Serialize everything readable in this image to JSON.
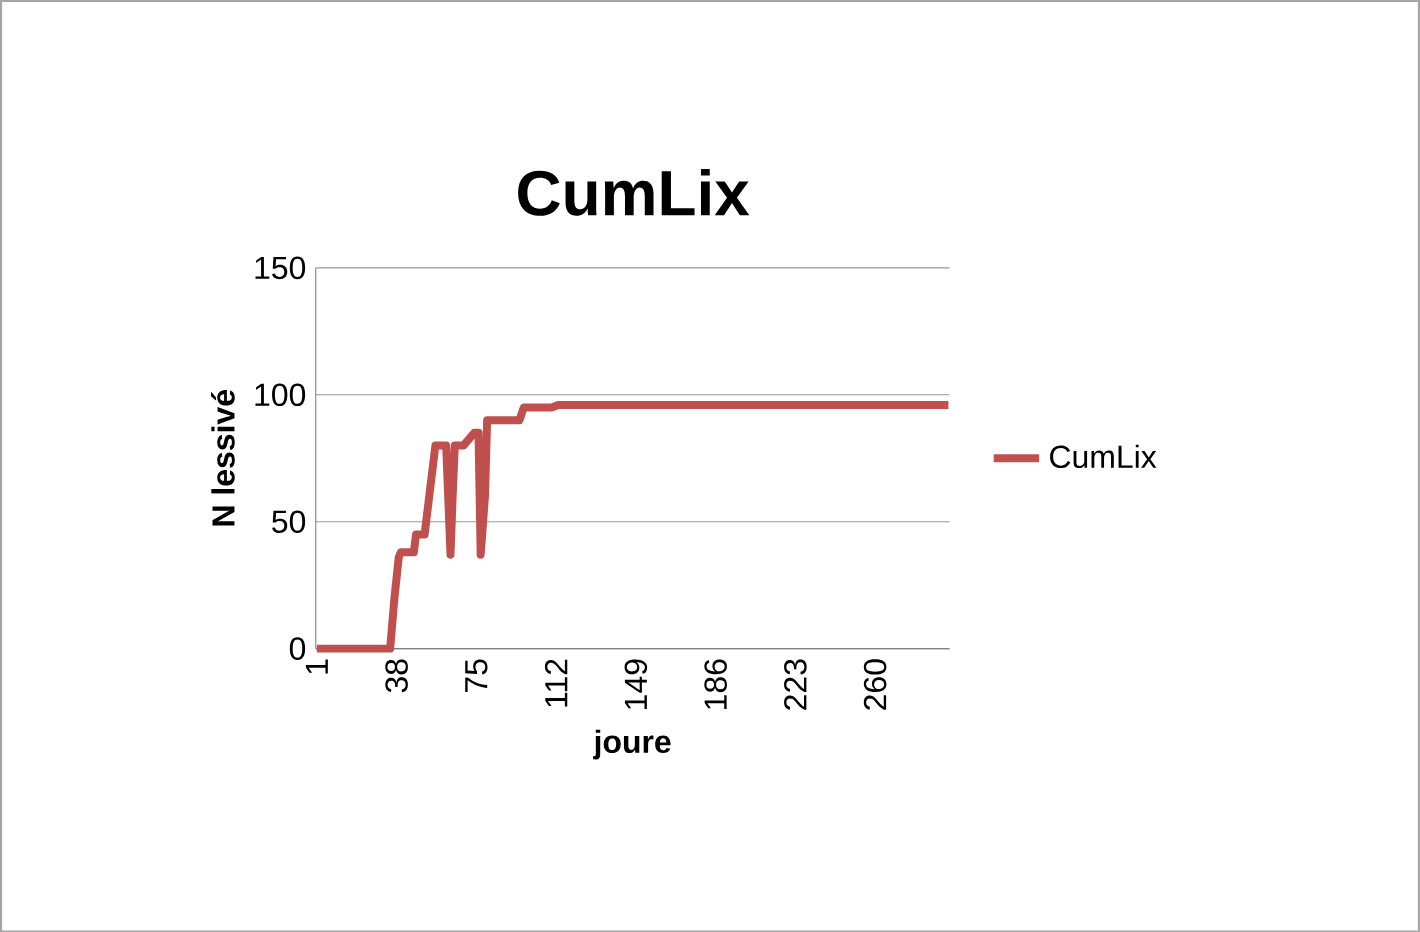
{
  "chart_data": {
    "type": "line",
    "title": "CumLix",
    "xlabel": "joure",
    "ylabel": "N lessivé",
    "xlim": [
      0.5,
      294.5
    ],
    "xticks": [
      1,
      38,
      75,
      112,
      149,
      186,
      223,
      260
    ],
    "ylim": [
      0,
      150
    ],
    "yticks": [
      0,
      50,
      100,
      150
    ],
    "grid": "y",
    "legend": "right",
    "series": [
      {
        "name": "CumLix",
        "color": "#c0504d",
        "x": [
          1,
          35,
          37,
          39,
          40,
          46,
          47,
          51,
          53,
          56,
          61,
          63,
          64,
          65,
          69,
          74,
          76,
          77,
          79,
          80,
          95,
          97,
          110,
          113,
          294
        ],
        "values": [
          0,
          0,
          20,
          36,
          38,
          38,
          45,
          45,
          59,
          80,
          80,
          37,
          60,
          80,
          80,
          85,
          85,
          37,
          60,
          90,
          90,
          95,
          95,
          96,
          96
        ]
      }
    ]
  }
}
